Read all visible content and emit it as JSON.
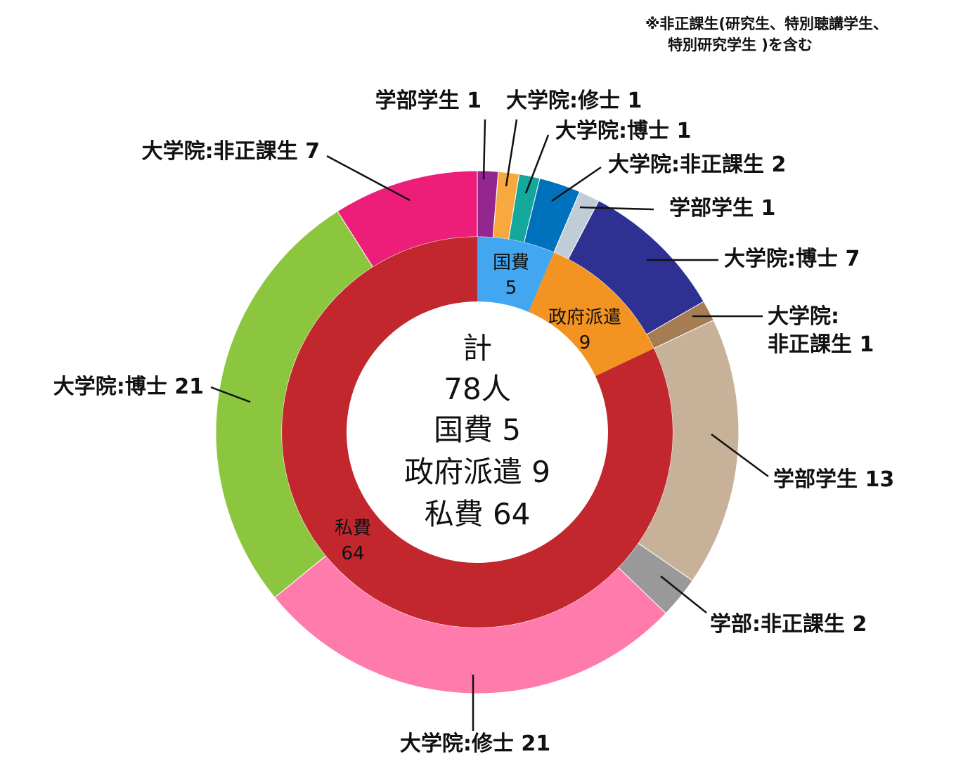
{
  "note": {
    "line1": "※非正課生(研究生、特別聴講学生、",
    "line2": "特別研究学生 )を含む"
  },
  "center": {
    "line1": "計",
    "line2": "78人",
    "line3": "国費 5",
    "line4": "政府派遣 9",
    "line5": "私費 64"
  },
  "chart_data": {
    "type": "donut",
    "total": 78,
    "inner": [
      {
        "label_lines": [
          "国費",
          "5"
        ],
        "value": 5,
        "color": "#42a6f0"
      },
      {
        "label_lines": [
          "政府派遣",
          "9"
        ],
        "value": 9,
        "color": "#f39322"
      },
      {
        "label_lines": [
          "私費",
          "64"
        ],
        "value": 64,
        "color": "#c1272d"
      }
    ],
    "outer": [
      {
        "label": "学部学生 1",
        "value": 1,
        "color": "#93278f"
      },
      {
        "label": "大学院:修士 1",
        "value": 1,
        "color": "#f7a940"
      },
      {
        "label": "大学院:博士 1",
        "value": 1,
        "color": "#14a79b"
      },
      {
        "label": "大学院:非正課生 2",
        "value": 2,
        "color": "#0071bc"
      },
      {
        "label": "学部学生 1",
        "value": 1,
        "color": "#bfcdd6"
      },
      {
        "label": "大学院:博士 7",
        "value": 7,
        "color": "#2e3192"
      },
      {
        "label": "大学院:\n非正課生 1",
        "value": 1,
        "color": "#a67c52"
      },
      {
        "label": "学部学生 13",
        "value": 13,
        "color": "#c7b299"
      },
      {
        "label": "学部:非正課生 2",
        "value": 2,
        "color": "#999999"
      },
      {
        "label": "大学院:修士 21",
        "value": 21,
        "color": "#ff7bac"
      },
      {
        "label": "大学院:博士 21",
        "value": 21,
        "color": "#8cc63f"
      },
      {
        "label": "大学院:非正課生 7",
        "value": 7,
        "color": "#ed1e79"
      }
    ]
  }
}
